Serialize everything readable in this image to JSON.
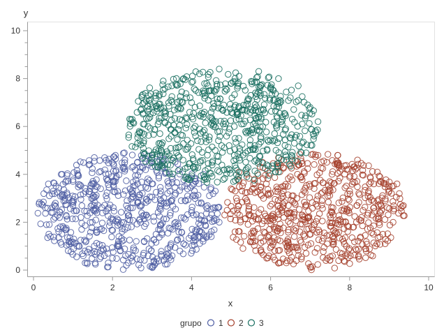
{
  "chart_data": {
    "type": "scatter",
    "xlabel": "x",
    "ylabel": "y",
    "xlim": [
      0,
      10
    ],
    "ylim": [
      0,
      10
    ],
    "x_ticks": [
      0,
      2,
      4,
      6,
      8,
      10
    ],
    "y_ticks": [
      0,
      2,
      4,
      6,
      8,
      10
    ],
    "marker": "open-circle",
    "grid": false,
    "legend_position": "bottom",
    "legend": {
      "title": "grupo",
      "entries": [
        "1",
        "2",
        "3"
      ]
    },
    "series": [
      {
        "name": "1",
        "color": "#4f5ea3",
        "region": {
          "center": [
            2.4,
            2.45
          ],
          "semi_axes": [
            2.3,
            2.45
          ]
        },
        "points": [
          [
            0.3,
            2.6
          ],
          [
            0.5,
            3.3
          ],
          [
            0.4,
            1.9
          ],
          [
            0.7,
            4.0
          ],
          [
            0.9,
            1.2
          ],
          [
            1.0,
            3.7
          ],
          [
            1.2,
            2.2
          ],
          [
            1.3,
            0.8
          ],
          [
            1.4,
            4.4
          ],
          [
            1.5,
            3.0
          ],
          [
            1.6,
            1.6
          ],
          [
            1.8,
            4.7
          ],
          [
            1.9,
            2.6
          ],
          [
            2.0,
            0.5
          ],
          [
            2.1,
            3.9
          ],
          [
            2.2,
            1.9
          ],
          [
            2.3,
            4.9
          ],
          [
            2.4,
            0.3
          ],
          [
            2.5,
            3.2
          ],
          [
            2.6,
            1.2
          ],
          [
            2.7,
            4.3
          ],
          [
            2.8,
            2.3
          ],
          [
            2.9,
            0.6
          ],
          [
            3.0,
            3.6
          ],
          [
            3.1,
            1.5
          ],
          [
            3.2,
            4.6
          ],
          [
            3.3,
            2.8
          ],
          [
            3.4,
            0.9
          ],
          [
            3.5,
            3.9
          ],
          [
            3.6,
            2.0
          ],
          [
            3.7,
            4.2
          ],
          [
            3.8,
            1.1
          ],
          [
            3.9,
            3.1
          ],
          [
            4.0,
            2.4
          ],
          [
            4.1,
            3.7
          ],
          [
            4.2,
            1.6
          ],
          [
            4.3,
            4.0
          ],
          [
            4.4,
            2.7
          ],
          [
            4.5,
            1.4
          ],
          [
            4.6,
            3.3
          ],
          [
            4.7,
            2.0
          ],
          [
            0.8,
            2.9
          ],
          [
            1.1,
            1.0
          ],
          [
            1.7,
            3.4
          ],
          [
            2.35,
            2.7
          ],
          [
            3.05,
            0.35
          ],
          [
            3.45,
            3.3
          ],
          [
            2.75,
            4.65
          ],
          [
            0.55,
            2.2
          ],
          [
            4.55,
            2.6
          ]
        ]
      },
      {
        "name": "2",
        "color": "#a5412d",
        "region": {
          "center": [
            7.1,
            2.45
          ],
          "semi_axes": [
            2.3,
            2.45
          ]
        },
        "points": [
          [
            4.9,
            2.5
          ],
          [
            5.0,
            3.4
          ],
          [
            5.1,
            1.6
          ],
          [
            5.2,
            4.1
          ],
          [
            5.3,
            0.9
          ],
          [
            5.4,
            2.9
          ],
          [
            5.5,
            1.2
          ],
          [
            5.6,
            3.8
          ],
          [
            5.7,
            2.1
          ],
          [
            5.8,
            4.5
          ],
          [
            5.9,
            0.5
          ],
          [
            6.0,
            3.2
          ],
          [
            6.1,
            1.7
          ],
          [
            6.2,
            4.7
          ],
          [
            6.3,
            2.6
          ],
          [
            6.4,
            0.3
          ],
          [
            6.5,
            3.9
          ],
          [
            6.6,
            1.4
          ],
          [
            6.7,
            4.4
          ],
          [
            6.8,
            2.3
          ],
          [
            6.9,
            0.7
          ],
          [
            7.0,
            3.5
          ],
          [
            7.1,
            1.9
          ],
          [
            7.2,
            4.8
          ],
          [
            7.3,
            2.9
          ],
          [
            7.4,
            0.4
          ],
          [
            7.5,
            3.7
          ],
          [
            7.6,
            1.3
          ],
          [
            7.7,
            4.4
          ],
          [
            7.8,
            2.5
          ],
          [
            7.9,
            0.6
          ],
          [
            8.0,
            3.3
          ],
          [
            8.1,
            1.8
          ],
          [
            8.2,
            4.6
          ],
          [
            8.3,
            2.2
          ],
          [
            8.4,
            0.9
          ],
          [
            8.5,
            3.6
          ],
          [
            8.6,
            1.5
          ],
          [
            8.7,
            4.1
          ],
          [
            8.8,
            2.7
          ],
          [
            8.9,
            1.1
          ],
          [
            9.0,
            3.3
          ],
          [
            9.1,
            2.0
          ],
          [
            9.2,
            3.6
          ],
          [
            9.3,
            2.6
          ],
          [
            6.45,
            2.7
          ],
          [
            7.55,
            2.4
          ],
          [
            5.85,
            2.35
          ],
          [
            8.25,
            3.15
          ],
          [
            6.95,
            1.05
          ]
        ]
      },
      {
        "name": "3",
        "color": "#1a6f61",
        "region": {
          "center": [
            4.75,
            6.0
          ],
          "semi_axes": [
            2.45,
            2.4
          ]
        },
        "points": [
          [
            2.5,
            6.3
          ],
          [
            2.7,
            5.4
          ],
          [
            2.8,
            7.0
          ],
          [
            2.9,
            6.0
          ],
          [
            3.0,
            4.8
          ],
          [
            3.1,
            7.4
          ],
          [
            3.2,
            5.7
          ],
          [
            3.3,
            6.6
          ],
          [
            3.4,
            4.4
          ],
          [
            3.5,
            7.7
          ],
          [
            3.6,
            5.1
          ],
          [
            3.7,
            6.3
          ],
          [
            3.8,
            8.0
          ],
          [
            3.9,
            4.3
          ],
          [
            4.0,
            7.0
          ],
          [
            4.1,
            5.6
          ],
          [
            4.2,
            8.2
          ],
          [
            4.3,
            6.4
          ],
          [
            4.4,
            3.8
          ],
          [
            4.5,
            7.5
          ],
          [
            4.6,
            5.0
          ],
          [
            4.7,
            8.4
          ],
          [
            4.8,
            6.1
          ],
          [
            4.9,
            4.2
          ],
          [
            5.0,
            7.8
          ],
          [
            5.1,
            5.5
          ],
          [
            5.2,
            8.1
          ],
          [
            5.3,
            6.7
          ],
          [
            5.4,
            3.9
          ],
          [
            5.5,
            7.3
          ],
          [
            5.6,
            5.2
          ],
          [
            5.7,
            8.3
          ],
          [
            5.8,
            6.0
          ],
          [
            5.9,
            4.4
          ],
          [
            6.0,
            7.6
          ],
          [
            6.1,
            5.7
          ],
          [
            6.2,
            8.0
          ],
          [
            6.3,
            6.4
          ],
          [
            6.4,
            4.6
          ],
          [
            6.5,
            7.2
          ],
          [
            6.6,
            5.3
          ],
          [
            6.7,
            7.7
          ],
          [
            6.8,
            6.1
          ],
          [
            6.9,
            4.9
          ],
          [
            7.0,
            6.8
          ],
          [
            7.1,
            5.6
          ],
          [
            7.2,
            6.2
          ],
          [
            4.35,
            6.15
          ],
          [
            5.25,
            6.45
          ],
          [
            4.95,
            5.2
          ]
        ]
      }
    ]
  }
}
